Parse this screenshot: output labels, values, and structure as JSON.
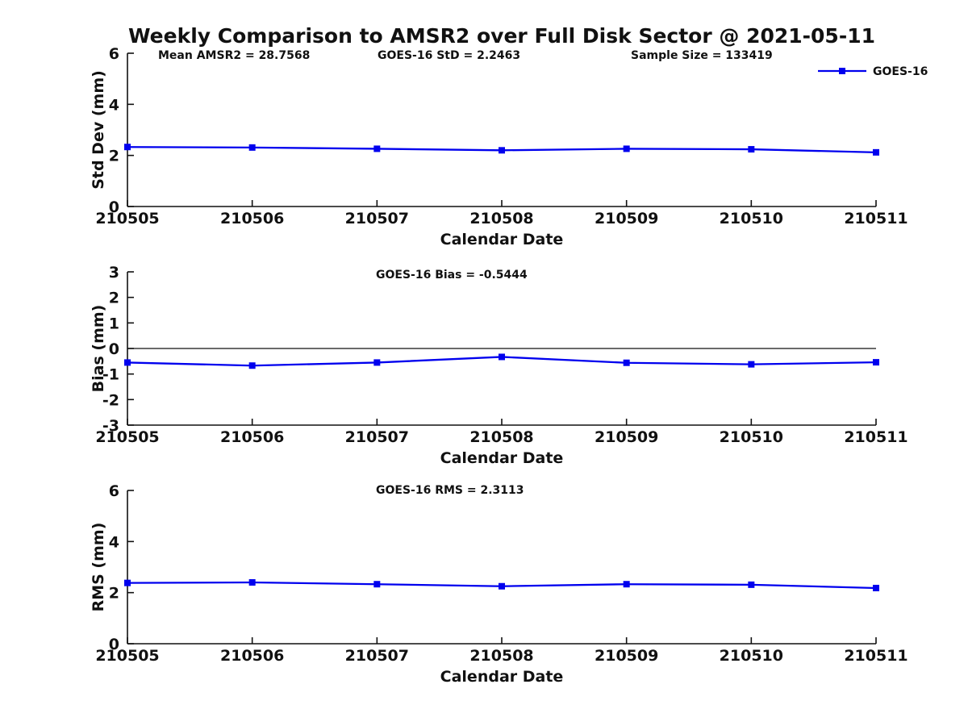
{
  "title": "Weekly Comparison to AMSR2 over Full Disk Sector @ 2021-05-11",
  "colors": {
    "series": "#0000EE",
    "ink": "#111111",
    "background": "#FFFFFF"
  },
  "chart_data": [
    {
      "type": "line",
      "categories": [
        "210505",
        "210506",
        "210507",
        "210508",
        "210509",
        "210510",
        "210511"
      ],
      "series": [
        {
          "name": "GOES-16",
          "values": [
            2.33,
            2.31,
            2.26,
            2.2,
            2.26,
            2.24,
            2.12
          ],
          "marker": "square"
        }
      ],
      "annotations": [
        "Mean AMSR2 = 28.7568",
        "GOES-16 StD = 2.2463",
        "Sample Size = 133419"
      ],
      "xlabel": "Calendar Date",
      "ylabel": "Std Dev (mm)",
      "ylim": [
        0,
        6
      ],
      "yticks": [
        0,
        2,
        4,
        6
      ],
      "grid": false,
      "zero_line": false,
      "legend": {
        "visible": true,
        "position": "northeast",
        "label": "GOES-16"
      }
    },
    {
      "type": "line",
      "categories": [
        "210505",
        "210506",
        "210507",
        "210508",
        "210509",
        "210510",
        "210511"
      ],
      "series": [
        {
          "name": "GOES-16",
          "values": [
            -0.55,
            -0.67,
            -0.55,
            -0.33,
            -0.56,
            -0.62,
            -0.54
          ],
          "marker": "square"
        }
      ],
      "annotations": [
        "GOES-16 Bias  = -0.5444"
      ],
      "xlabel": "Calendar Date",
      "ylabel": "Bias (mm)",
      "ylim": [
        -3,
        3
      ],
      "yticks": [
        3,
        2,
        1,
        0,
        -1,
        -2,
        -3
      ],
      "grid": false,
      "zero_line": true,
      "legend": {
        "visible": false
      }
    },
    {
      "type": "line",
      "categories": [
        "210505",
        "210506",
        "210507",
        "210508",
        "210509",
        "210510",
        "210511"
      ],
      "series": [
        {
          "name": "GOES-16",
          "values": [
            2.38,
            2.4,
            2.33,
            2.25,
            2.33,
            2.31,
            2.18
          ],
          "marker": "square"
        }
      ],
      "annotations": [
        "GOES-16 RMS = 2.3113"
      ],
      "xlabel": "Calendar Date",
      "ylabel": "RMS (mm)",
      "ylim": [
        0,
        6
      ],
      "yticks": [
        0,
        2,
        4,
        6
      ],
      "grid": false,
      "zero_line": false,
      "legend": {
        "visible": false
      }
    }
  ]
}
